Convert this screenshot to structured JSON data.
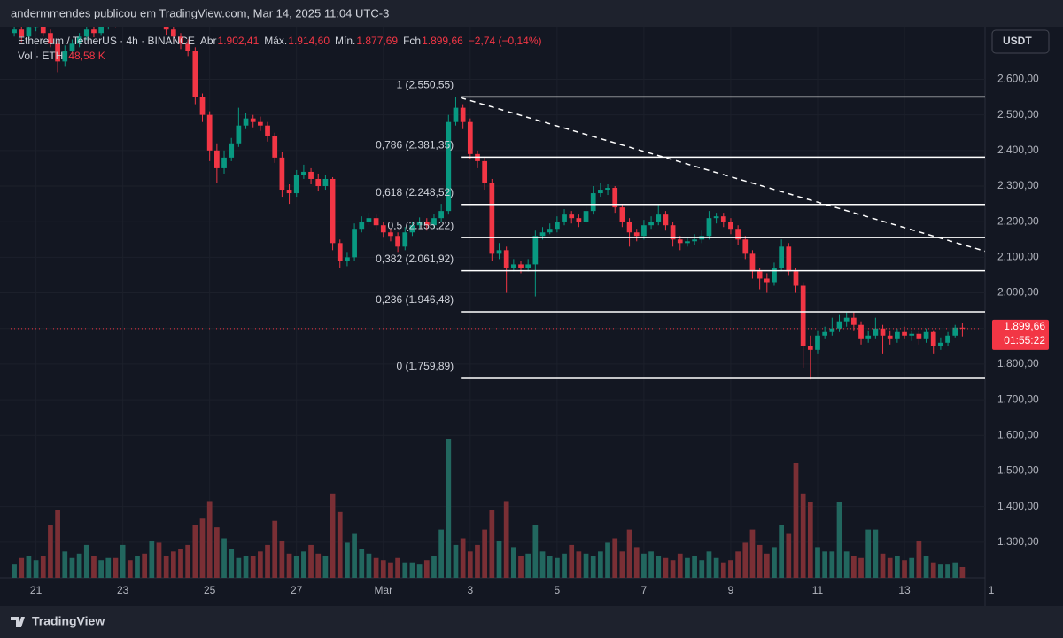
{
  "header": {
    "caption": "andermmendes publicou em TradingView.com, Mar 14, 2025 11:04 UTC-3"
  },
  "footer": {
    "brand": "TradingView"
  },
  "chart_data": {
    "type": "candlestick",
    "legend": {
      "symbol": "Ethereum / TetherUS · 4h · BINANCE",
      "fields": [
        {
          "label": "Abr",
          "value": "1.902,41"
        },
        {
          "label": "Máx.",
          "value": "1.914,60"
        },
        {
          "label": "Mín.",
          "value": "1.877,69"
        },
        {
          "label": "Fch",
          "value": "1.899,66"
        }
      ],
      "change": "−2,74 (−0,14%)",
      "volume_label": "Vol · ETH",
      "volume_value": "48,58 K"
    },
    "currency_button": "USDT",
    "last_price_label": "1.899,66",
    "countdown": "01:55:22",
    "colors": {
      "up": "#089981",
      "down": "#f23645",
      "up_volume": "#22675f",
      "down_volume": "#7a2f35"
    },
    "xlim": [
      -0.5,
      134.5
    ],
    "ylim": [
      1200,
      2748
    ],
    "xticks": [
      {
        "value": 3,
        "label": "21"
      },
      {
        "value": 15,
        "label": "23"
      },
      {
        "value": 27,
        "label": "25"
      },
      {
        "value": 39,
        "label": "27"
      },
      {
        "value": 51,
        "label": "Mar"
      },
      {
        "value": 63,
        "label": "3"
      },
      {
        "value": 75,
        "label": "5"
      },
      {
        "value": 87,
        "label": "7"
      },
      {
        "value": 99,
        "label": "9"
      },
      {
        "value": 111,
        "label": "11"
      },
      {
        "value": 123,
        "label": "13"
      },
      {
        "value": 135,
        "label": "1"
      }
    ],
    "yticks": [
      {
        "value": 1300,
        "label": "1.300,00"
      },
      {
        "value": 1400,
        "label": "1.400,00"
      },
      {
        "value": 1500,
        "label": "1.500,00"
      },
      {
        "value": 1600,
        "label": "1.600,00"
      },
      {
        "value": 1700,
        "label": "1.700,00"
      },
      {
        "value": 1800,
        "label": "1.800,00"
      },
      {
        "value": 1900,
        "label": "1.900,00"
      },
      {
        "value": 2000,
        "label": "2.000,00"
      },
      {
        "value": 2100,
        "label": "2.100,00"
      },
      {
        "value": 2200,
        "label": "2.200,00"
      },
      {
        "value": 2300,
        "label": "2.300,00"
      },
      {
        "value": 2400,
        "label": "2.400,00"
      },
      {
        "value": 2500,
        "label": "2.500,00"
      },
      {
        "value": 2600,
        "label": "2.600,00"
      }
    ],
    "grid": true,
    "candle_fields": [
      "open",
      "high",
      "low",
      "close",
      "volume"
    ],
    "candles": [
      [
        2730,
        2755,
        2720,
        2740,
        60000
      ],
      [
        2740,
        2750,
        2705,
        2720,
        90000
      ],
      [
        2720,
        2758,
        2712,
        2745,
        100000
      ],
      [
        2745,
        2775,
        2735,
        2760,
        80000
      ],
      [
        2760,
        2770,
        2720,
        2730,
        100000
      ],
      [
        2730,
        2740,
        2690,
        2700,
        240000
      ],
      [
        2700,
        2710,
        2620,
        2650,
        310000
      ],
      [
        2650,
        2695,
        2635,
        2680,
        120000
      ],
      [
        2680,
        2712,
        2670,
        2700,
        90000
      ],
      [
        2700,
        2730,
        2690,
        2720,
        110000
      ],
      [
        2720,
        2752,
        2710,
        2740,
        150000
      ],
      [
        2740,
        2755,
        2718,
        2730,
        100000
      ],
      [
        2730,
        2762,
        2722,
        2750,
        80000
      ],
      [
        2750,
        2785,
        2740,
        2770,
        90000
      ],
      [
        2770,
        2780,
        2745,
        2760,
        90000
      ],
      [
        2760,
        2795,
        2750,
        2780,
        150000
      ],
      [
        2780,
        2790,
        2755,
        2770,
        80000
      ],
      [
        2770,
        2800,
        2760,
        2790,
        100000
      ],
      [
        2790,
        2800,
        2750,
        2760,
        110000
      ],
      [
        2760,
        2790,
        2750,
        2780,
        170000
      ],
      [
        2780,
        2790,
        2740,
        2750,
        160000
      ],
      [
        2750,
        2760,
        2725,
        2740,
        100000
      ],
      [
        2740,
        2750,
        2705,
        2720,
        120000
      ],
      [
        2720,
        2730,
        2685,
        2700,
        130000
      ],
      [
        2700,
        2712,
        2665,
        2680,
        150000
      ],
      [
        2680,
        2690,
        2530,
        2550,
        240000
      ],
      [
        2550,
        2560,
        2480,
        2500,
        270000
      ],
      [
        2500,
        2510,
        2370,
        2400,
        350000
      ],
      [
        2400,
        2420,
        2310,
        2350,
        230000
      ],
      [
        2350,
        2400,
        2335,
        2380,
        180000
      ],
      [
        2380,
        2435,
        2370,
        2420,
        130000
      ],
      [
        2420,
        2520,
        2410,
        2470,
        90000
      ],
      [
        2470,
        2505,
        2460,
        2490,
        100000
      ],
      [
        2490,
        2500,
        2465,
        2480,
        100000
      ],
      [
        2480,
        2495,
        2455,
        2470,
        120000
      ],
      [
        2470,
        2480,
        2425,
        2440,
        150000
      ],
      [
        2440,
        2450,
        2365,
        2380,
        260000
      ],
      [
        2380,
        2395,
        2270,
        2290,
        170000
      ],
      [
        2290,
        2305,
        2250,
        2280,
        110000
      ],
      [
        2280,
        2345,
        2270,
        2330,
        100000
      ],
      [
        2330,
        2360,
        2320,
        2340,
        120000
      ],
      [
        2340,
        2350,
        2305,
        2320,
        150000
      ],
      [
        2320,
        2335,
        2285,
        2300,
        110000
      ],
      [
        2300,
        2330,
        2290,
        2320,
        100000
      ],
      [
        2320,
        2325,
        2120,
        2140,
        385000
      ],
      [
        2140,
        2150,
        2070,
        2090,
        300000
      ],
      [
        2090,
        2115,
        2075,
        2100,
        160000
      ],
      [
        2100,
        2195,
        2090,
        2180,
        200000
      ],
      [
        2180,
        2215,
        2170,
        2200,
        130000
      ],
      [
        2200,
        2225,
        2190,
        2210,
        110000
      ],
      [
        2210,
        2220,
        2175,
        2190,
        90000
      ],
      [
        2190,
        2200,
        2155,
        2170,
        80000
      ],
      [
        2170,
        2180,
        2145,
        2160,
        70000
      ],
      [
        2160,
        2170,
        2115,
        2130,
        90000
      ],
      [
        2130,
        2185,
        2120,
        2170,
        70000
      ],
      [
        2170,
        2200,
        2160,
        2190,
        70000
      ],
      [
        2190,
        2212,
        2180,
        2200,
        60000
      ],
      [
        2200,
        2210,
        2175,
        2190,
        80000
      ],
      [
        2190,
        2222,
        2180,
        2210,
        100000
      ],
      [
        2210,
        2250,
        2200,
        2230,
        220000
      ],
      [
        2230,
        2500,
        2220,
        2480,
        635000
      ],
      [
        2480,
        2550,
        2470,
        2520,
        150000
      ],
      [
        2520,
        2530,
        2460,
        2480,
        180000
      ],
      [
        2480,
        2490,
        2375,
        2390,
        120000
      ],
      [
        2390,
        2400,
        2350,
        2370,
        150000
      ],
      [
        2370,
        2380,
        2290,
        2310,
        220000
      ],
      [
        2310,
        2320,
        2090,
        2110,
        310000
      ],
      [
        2110,
        2140,
        2095,
        2120,
        170000
      ],
      [
        2120,
        2130,
        2000,
        2070,
        350000
      ],
      [
        2070,
        2095,
        2060,
        2080,
        140000
      ],
      [
        2080,
        2090,
        2055,
        2070,
        100000
      ],
      [
        2070,
        2095,
        2060,
        2080,
        110000
      ],
      [
        2080,
        2175,
        1990,
        2160,
        240000
      ],
      [
        2160,
        2185,
        2150,
        2170,
        120000
      ],
      [
        2170,
        2195,
        2165,
        2180,
        100000
      ],
      [
        2180,
        2215,
        2170,
        2200,
        90000
      ],
      [
        2200,
        2235,
        2190,
        2220,
        110000
      ],
      [
        2220,
        2230,
        2195,
        2210,
        150000
      ],
      [
        2210,
        2220,
        2185,
        2200,
        120000
      ],
      [
        2200,
        2245,
        2195,
        2230,
        110000
      ],
      [
        2230,
        2300,
        2220,
        2280,
        100000
      ],
      [
        2280,
        2310,
        2270,
        2290,
        120000
      ],
      [
        2290,
        2305,
        2275,
        2295,
        160000
      ],
      [
        2295,
        2300,
        2225,
        2240,
        180000
      ],
      [
        2240,
        2250,
        2185,
        2200,
        120000
      ],
      [
        2200,
        2210,
        2130,
        2170,
        220000
      ],
      [
        2170,
        2180,
        2145,
        2160,
        140000
      ],
      [
        2160,
        2205,
        2150,
        2190,
        110000
      ],
      [
        2190,
        2215,
        2180,
        2200,
        120000
      ],
      [
        2200,
        2250,
        2190,
        2220,
        100000
      ],
      [
        2220,
        2230,
        2175,
        2190,
        90000
      ],
      [
        2190,
        2200,
        2130,
        2150,
        80000
      ],
      [
        2150,
        2160,
        2120,
        2140,
        110000
      ],
      [
        2140,
        2155,
        2130,
        2145,
        90000
      ],
      [
        2145,
        2165,
        2135,
        2150,
        100000
      ],
      [
        2150,
        2175,
        2140,
        2160,
        80000
      ],
      [
        2160,
        2230,
        2150,
        2210,
        120000
      ],
      [
        2210,
        2225,
        2195,
        2215,
        90000
      ],
      [
        2215,
        2225,
        2185,
        2200,
        70000
      ],
      [
        2200,
        2210,
        2165,
        2180,
        80000
      ],
      [
        2180,
        2190,
        2135,
        2150,
        120000
      ],
      [
        2150,
        2160,
        2095,
        2110,
        160000
      ],
      [
        2110,
        2120,
        2040,
        2060,
        220000
      ],
      [
        2060,
        2070,
        2010,
        2040,
        150000
      ],
      [
        2040,
        2055,
        2000,
        2030,
        110000
      ],
      [
        2030,
        2085,
        2020,
        2070,
        140000
      ],
      [
        2070,
        2150,
        2060,
        2130,
        240000
      ],
      [
        2130,
        2140,
        2050,
        2060,
        200000
      ],
      [
        2060,
        2070,
        2000,
        2020,
        525000
      ],
      [
        2020,
        2030,
        1790,
        1850,
        385000
      ],
      [
        1850,
        1880,
        1757,
        1840,
        345000
      ],
      [
        1840,
        1895,
        1830,
        1880,
        140000
      ],
      [
        1880,
        1905,
        1870,
        1890,
        120000
      ],
      [
        1890,
        1930,
        1880,
        1900,
        120000
      ],
      [
        1900,
        1940,
        1890,
        1920,
        345000
      ],
      [
        1920,
        1945,
        1905,
        1930,
        120000
      ],
      [
        1930,
        1945,
        1895,
        1910,
        100000
      ],
      [
        1910,
        1920,
        1855,
        1870,
        90000
      ],
      [
        1870,
        1895,
        1860,
        1880,
        220000
      ],
      [
        1880,
        1930,
        1870,
        1900,
        220000
      ],
      [
        1900,
        1910,
        1830,
        1880,
        110000
      ],
      [
        1880,
        1895,
        1855,
        1870,
        90000
      ],
      [
        1870,
        1900,
        1860,
        1890,
        100000
      ],
      [
        1890,
        1905,
        1870,
        1880,
        80000
      ],
      [
        1880,
        1895,
        1865,
        1885,
        90000
      ],
      [
        1885,
        1895,
        1855,
        1870,
        170000
      ],
      [
        1870,
        1900,
        1860,
        1890,
        100000
      ],
      [
        1890,
        1895,
        1830,
        1850,
        70000
      ],
      [
        1850,
        1875,
        1840,
        1860,
        60000
      ],
      [
        1860,
        1890,
        1850,
        1880,
        60000
      ],
      [
        1880,
        1910,
        1875,
        1902.41,
        70000
      ],
      [
        1902.41,
        1914.6,
        1877.69,
        1899.66,
        48580
      ]
    ],
    "fib_levels": [
      {
        "label": "1 (2.550,55)",
        "value": 2550.55
      },
      {
        "label": "0,786 (2.381,35)",
        "value": 2381.35
      },
      {
        "label": "0,618 (2.248,52)",
        "value": 2248.52
      },
      {
        "label": "0,5 (2.155,22)",
        "value": 2155.22
      },
      {
        "label": "0,382 (2.061,92)",
        "value": 2061.92
      },
      {
        "label": "0,236 (1.946,48)",
        "value": 1946.48
      },
      {
        "label": "0 (1.759,89)",
        "value": 1759.89
      }
    ],
    "fib_x": [
      61.7,
      134.5
    ],
    "trendline": {
      "x": [
        61.7,
        134.5
      ],
      "y": [
        2548,
        2115
      ]
    }
  }
}
